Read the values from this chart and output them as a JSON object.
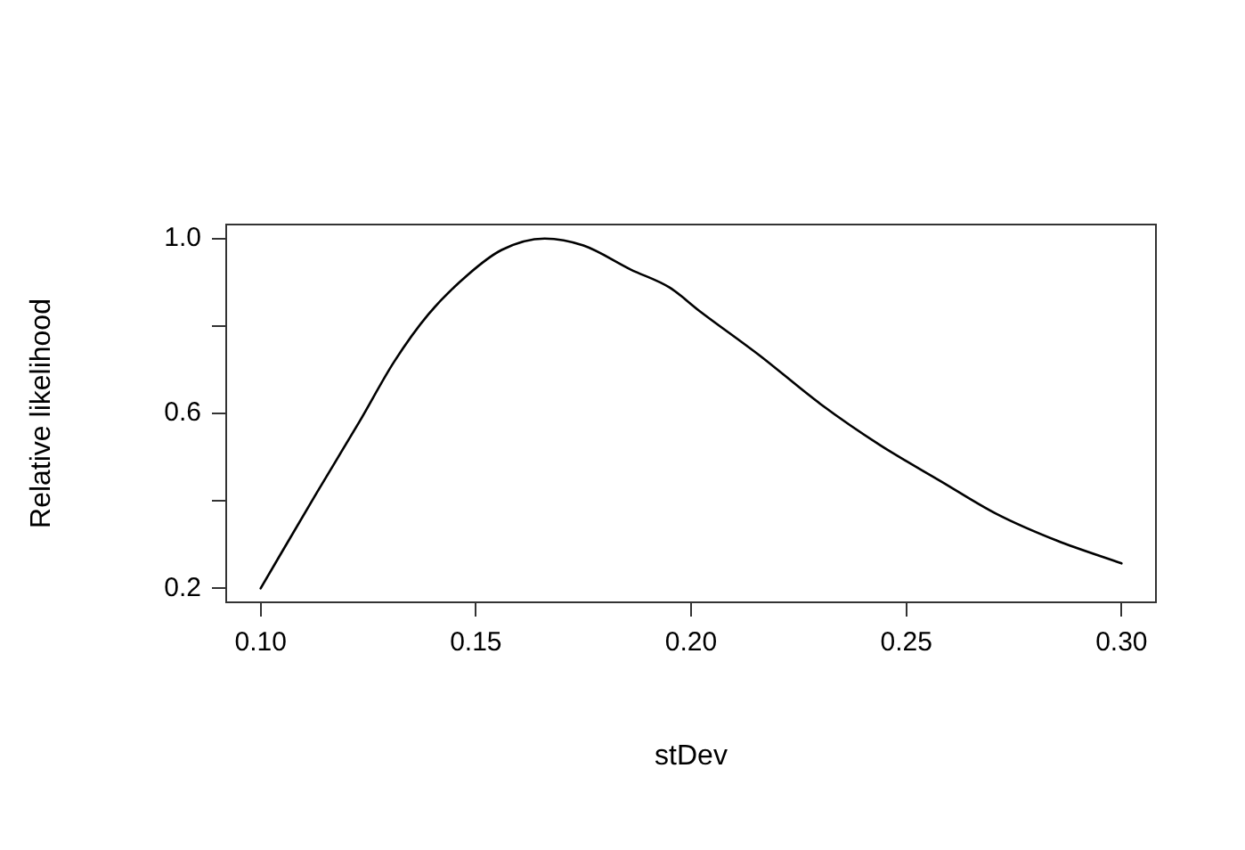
{
  "chart_data": {
    "type": "line",
    "xlabel": "stDev",
    "ylabel": "Relative likelihood",
    "x": [
      0.1,
      0.113,
      0.123,
      0.131,
      0.139,
      0.148,
      0.156,
      0.166,
      0.175,
      0.186,
      0.195,
      0.202,
      0.216,
      0.23,
      0.244,
      0.258,
      0.271,
      0.285,
      0.3
    ],
    "values": [
      0.2,
      0.418,
      0.582,
      0.718,
      0.827,
      0.916,
      0.974,
      1.0,
      0.984,
      0.929,
      0.888,
      0.834,
      0.732,
      0.622,
      0.527,
      0.445,
      0.37,
      0.309,
      0.257
    ],
    "color": "#000000",
    "marker": "none",
    "line_style": "solid",
    "grid": false,
    "legend": false,
    "xlim": [
      0.092,
      0.308
    ],
    "ylim": [
      0.168,
      1.032
    ],
    "xticks": [
      {
        "value": 0.1,
        "label": "0.10"
      },
      0.15,
      {
        "value": 0.2,
        "label": "0.20"
      },
      0.25,
      {
        "value": 0.3,
        "label": "0.30"
      }
    ],
    "yticks": [
      0.2,
      {
        "value": 0.4,
        "label": null
      },
      0.6,
      {
        "value": 0.8,
        "label": null
      },
      {
        "value": 1,
        "label": "1.0"
      }
    ]
  }
}
